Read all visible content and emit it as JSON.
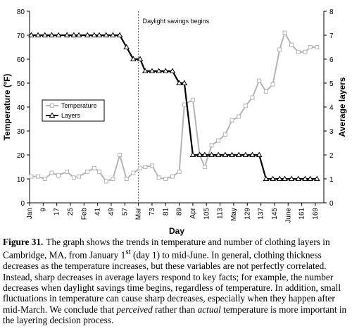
{
  "chart_data": {
    "type": "line",
    "x_label": "Day",
    "y_label": "Temperature (ºF)",
    "y2_label": "Average layers",
    "xlim": [
      1,
      174
    ],
    "ylim": [
      0,
      80
    ],
    "y2lim": [
      0,
      8
    ],
    "xticks": [
      {
        "value": 1,
        "label": "Jan"
      },
      9,
      17,
      25,
      {
        "value": 33,
        "label": "Feb"
      },
      41,
      49,
      57,
      {
        "value": 65,
        "label": "Mar"
      },
      73,
      81,
      89,
      {
        "value": 97,
        "label": "Apr"
      },
      105,
      113,
      {
        "value": 121,
        "label": "May"
      },
      129,
      137,
      145,
      {
        "value": 153,
        "label": "June"
      },
      161,
      169
    ],
    "yticks": [
      0,
      10,
      20,
      30,
      40,
      50,
      60,
      70,
      80
    ],
    "y2ticks": [
      0,
      1,
      2,
      3,
      4,
      5,
      6,
      7,
      8
    ],
    "x": [
      2,
      6,
      10,
      14,
      18,
      23,
      27,
      30,
      35,
      39,
      42,
      46,
      50,
      54,
      58,
      62,
      66,
      69,
      73,
      77,
      81,
      85,
      89,
      92,
      97,
      101,
      104,
      108,
      112,
      116,
      120,
      124,
      128,
      132,
      136,
      140,
      144,
      148,
      151,
      155,
      159,
      163,
      166,
      170
    ],
    "series": [
      {
        "name": "Temperature",
        "color": "#b4b4b4",
        "marker": "square",
        "values": [
          11,
          11,
          10,
          12.5,
          11.5,
          13,
          10.5,
          11,
          13,
          14.5,
          13,
          9,
          10,
          20,
          10,
          12.5,
          14.5,
          15,
          15.5,
          10.5,
          10,
          11,
          13,
          41,
          43,
          20,
          15,
          24,
          26,
          28.5,
          34.5,
          36,
          40.5,
          44,
          51,
          46.5,
          49.5,
          64,
          71,
          66,
          63,
          63,
          65,
          65
        ]
      },
      {
        "name": "Layers",
        "color": "#000000",
        "marker": "triangle",
        "axis": "y2",
        "values": [
          7,
          7,
          7,
          7,
          7,
          7,
          7,
          7,
          7,
          7,
          7,
          7,
          7,
          7,
          6.5,
          6,
          6,
          5.5,
          5.5,
          5.5,
          5.5,
          5.5,
          5,
          5,
          2,
          2,
          2,
          2,
          2,
          2,
          2,
          2,
          2,
          2,
          2,
          1,
          1,
          1,
          1,
          1,
          1,
          1,
          1,
          1
        ]
      }
    ],
    "annotation": {
      "text": "Daylight savings begins",
      "x": 65
    },
    "grid": false,
    "legend": "left"
  },
  "caption": {
    "label": "Figure 31.",
    "parts": [
      "The graph shows the trends in temperature and number of clothing layers in Cambridge, MA, from January 1",
      "st",
      " (day 1) to mid-June. In general, clothing thickness decreases as the temperature increases, but these variables are not perfectly correlated. Instead, sharp decreases in average layers respond to key facts; for example, the number decreases when daylight savings time begins, regardless of temperature. In addition, small fluctuations in temperature can cause sharp decreases, especially when they happen after mid-March. We conclude that ",
      "perceived",
      " rather than ",
      "actual",
      " temperature is more important in the layering decision process."
    ]
  }
}
